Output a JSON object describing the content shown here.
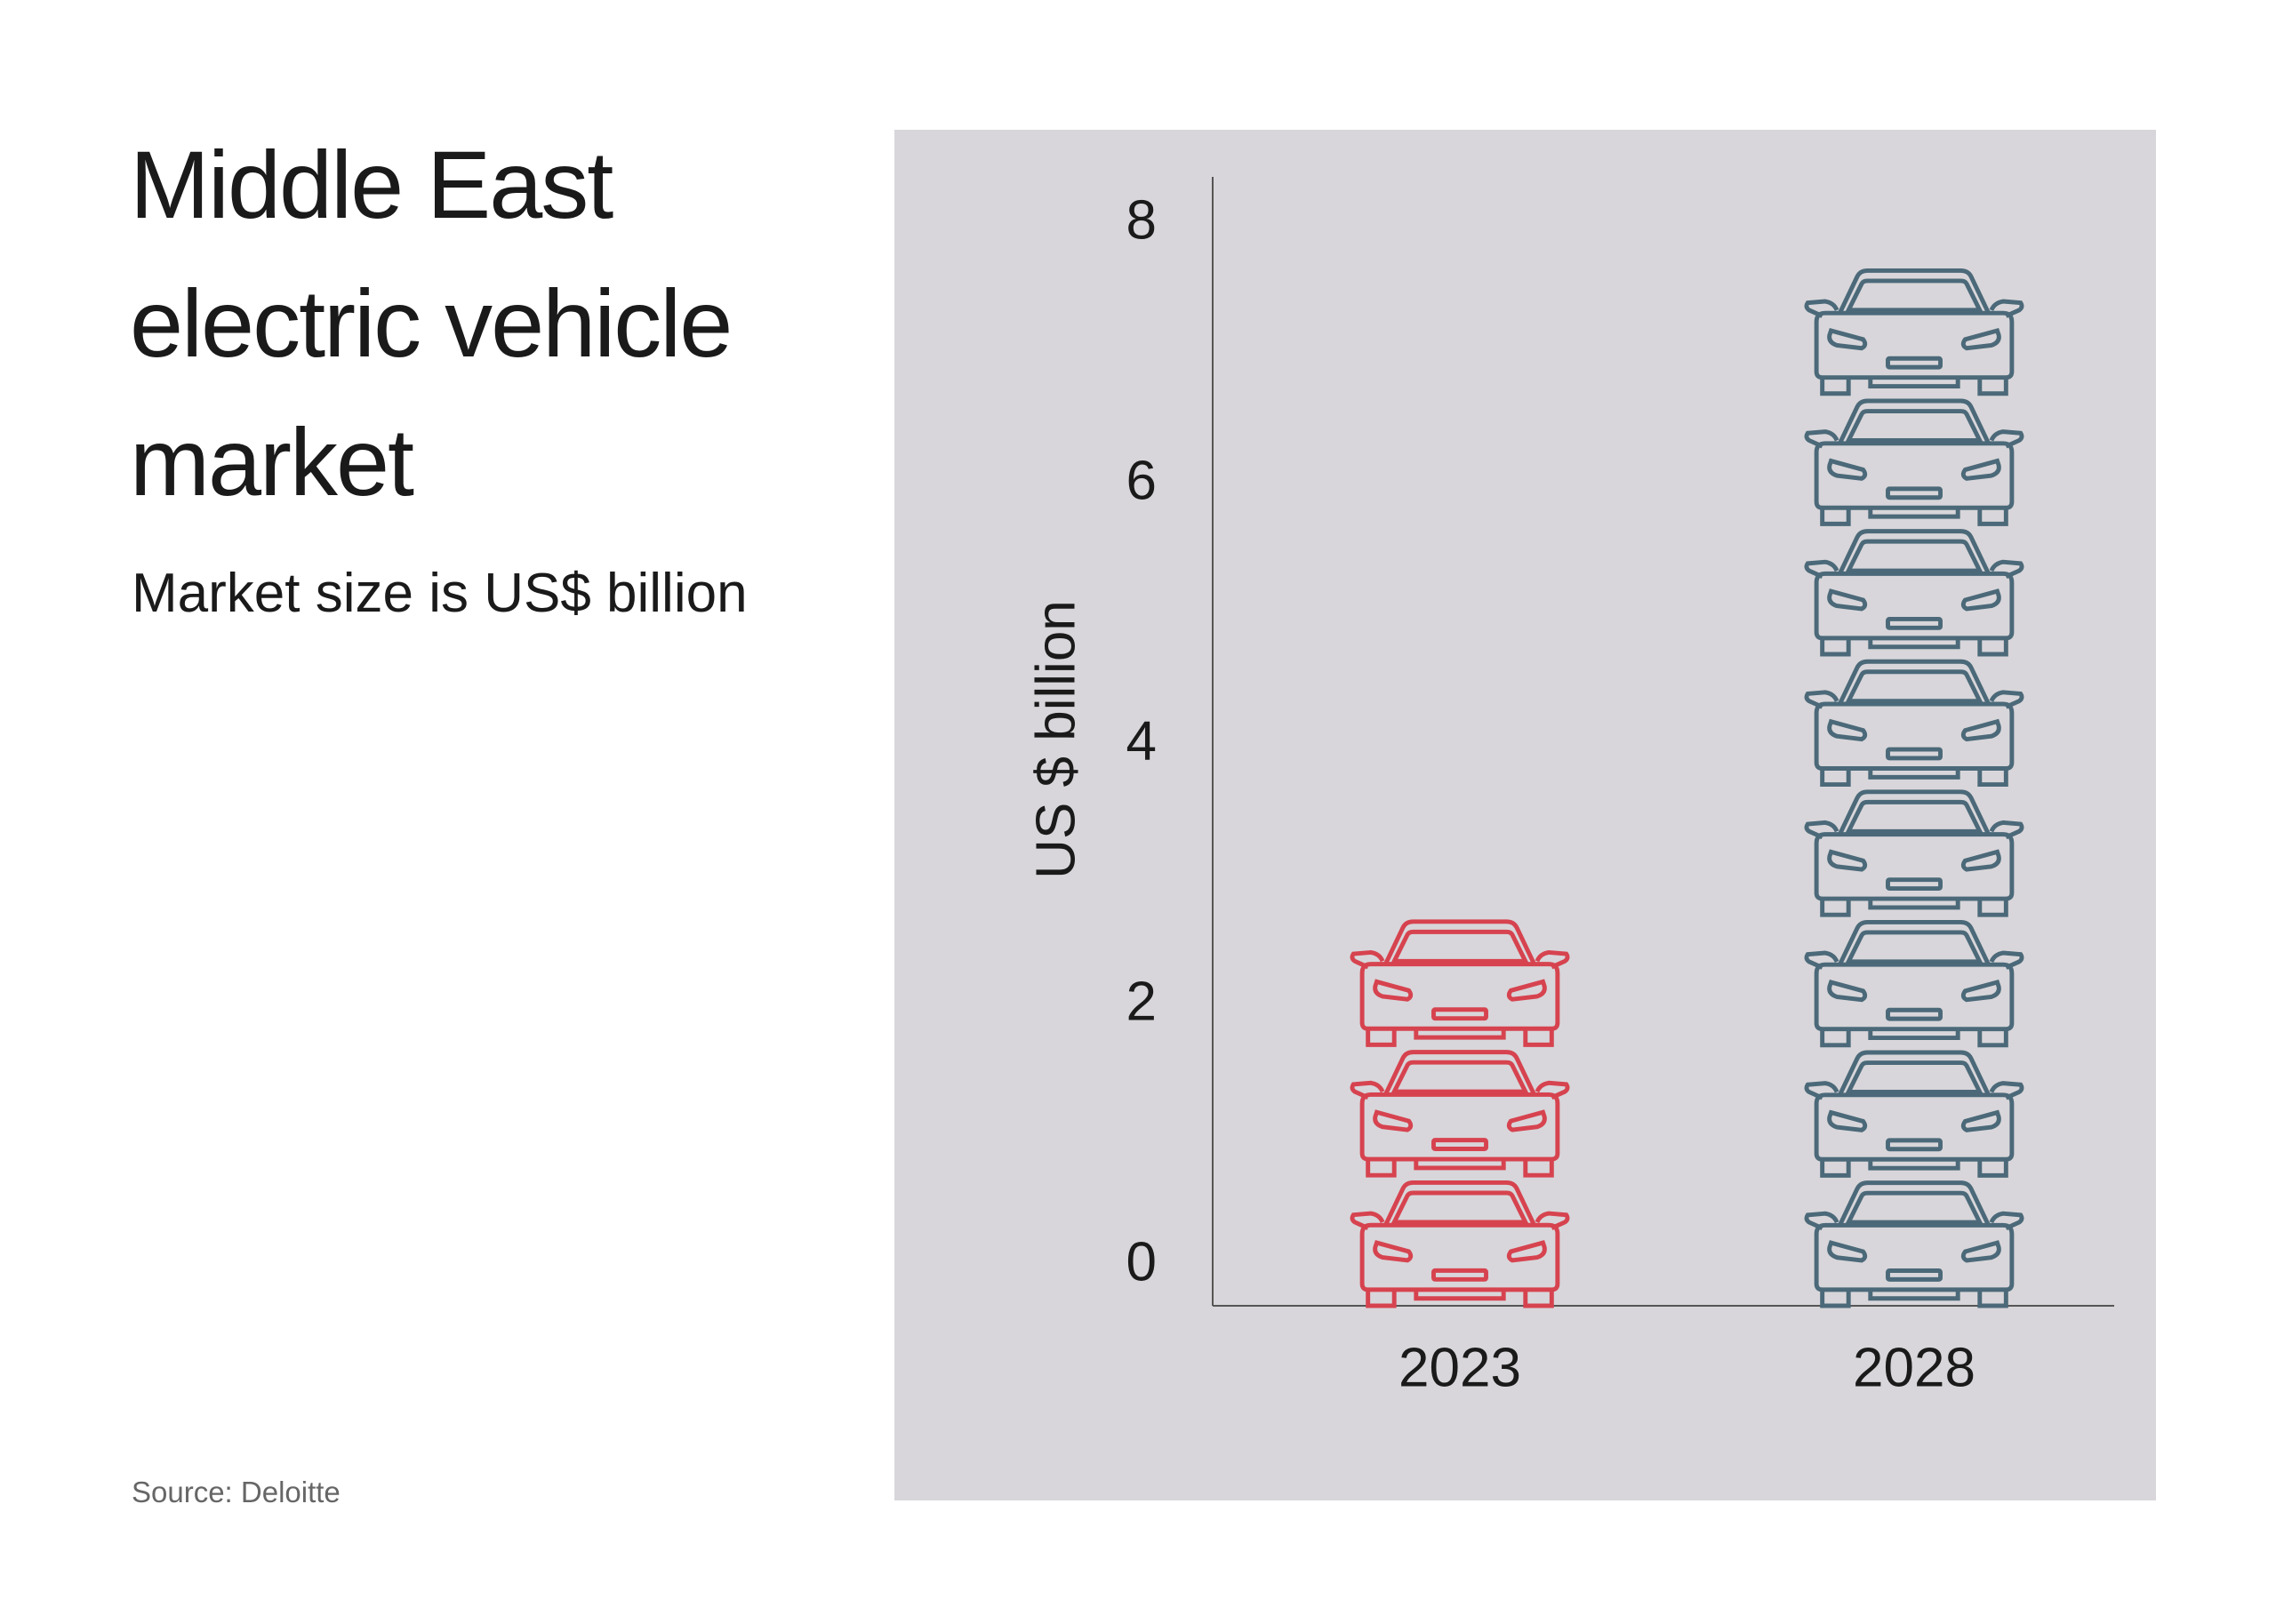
{
  "chart_data": {
    "type": "pictogram_bar",
    "title": "Middle East electric vehicle market",
    "subtitle": "Market size is US$ billion",
    "source": "Source: Deloitte",
    "y_label": "US $ billion",
    "categories": [
      "2023",
      "2028"
    ],
    "values": [
      2.7,
      7.7
    ],
    "colors": [
      "#d6434f",
      "#4b6979"
    ],
    "ylim": [
      -0.307,
      8.5
    ],
    "yticks": [
      0,
      2,
      4,
      6,
      8
    ],
    "grid": false
  }
}
